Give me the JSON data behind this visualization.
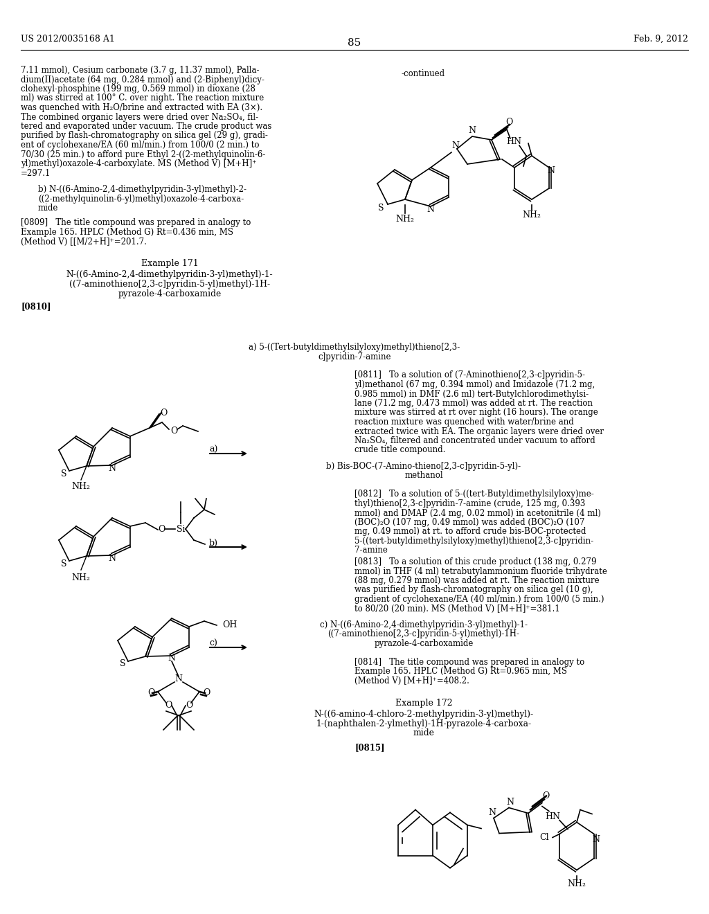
{
  "page_header_left": "US 2012/0035168 A1",
  "page_header_right": "Feb. 9, 2012",
  "page_number": "85",
  "background_color": "#ffffff"
}
